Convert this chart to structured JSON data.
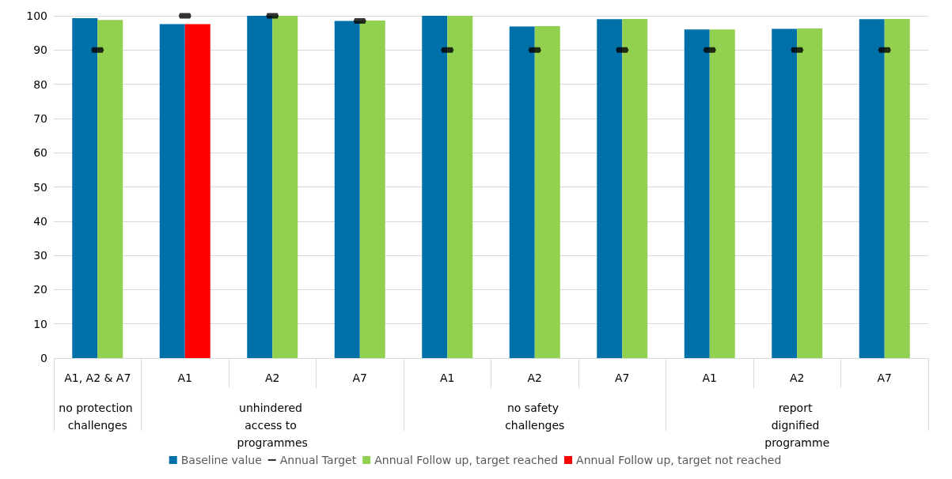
{
  "chart_data": {
    "type": "bar",
    "categories": [
      "A1, A2 & A7",
      "A1",
      "A2",
      "A7",
      "A1",
      "A2",
      "A7",
      "A1",
      "A2",
      "A7"
    ],
    "annotations": [
      "no protection challenges",
      "unhindered access to programmes",
      "no safety challenges",
      "report dignified programme"
    ],
    "series": [
      {
        "name": "Baseline value",
        "color": "#0070a8",
        "values": [
          99.3,
          97.6,
          100,
          98.5,
          100,
          96.9,
          99,
          96,
          96.2,
          99
        ]
      },
      {
        "name": "Annual Target",
        "type": "scatter",
        "color": "#000000",
        "values": [
          90,
          100,
          100,
          98.5,
          90,
          90,
          90,
          90,
          90,
          90
        ]
      },
      {
        "name": "Annual Follow up, target reached",
        "color": "#92d050",
        "values": [
          98.8,
          null,
          100,
          98.6,
          100,
          97,
          99.1,
          96,
          96.3,
          99.1
        ]
      },
      {
        "name": "Annual Follow up, target not reached",
        "color": "#ff0000",
        "values": [
          null,
          97.6,
          null,
          null,
          null,
          null,
          null,
          null,
          null,
          null
        ]
      }
    ],
    "ylim": [
      0,
      100
    ],
    "yticks": [
      0,
      10,
      20,
      30,
      40,
      50,
      60,
      70,
      80,
      90,
      100
    ],
    "grid": "y",
    "legend": "bottom"
  }
}
